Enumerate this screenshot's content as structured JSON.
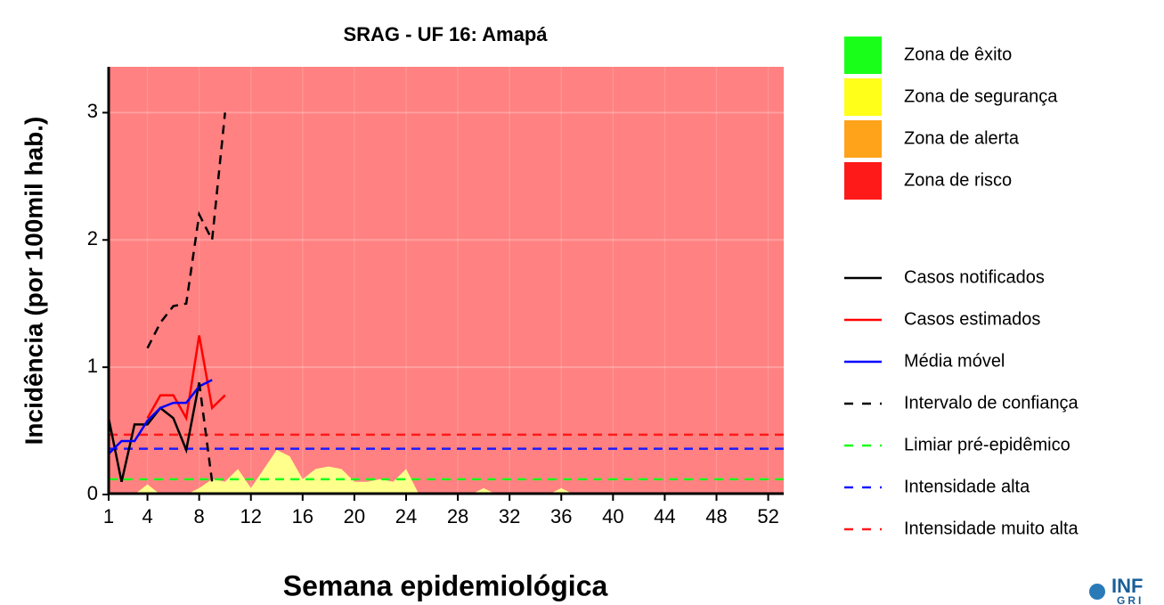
{
  "chart_data": {
    "type": "line",
    "title": "SRAG - UF 16: Amapá",
    "x_label": "Semana epidemiológica",
    "y_label": "Incidência (por 100mil hab.)",
    "xlim": [
      1,
      53.2
    ],
    "ylim": [
      0,
      3.36
    ],
    "xticks": [
      1,
      4,
      8,
      12,
      16,
      20,
      24,
      28,
      32,
      36,
      40,
      44,
      48,
      52
    ],
    "yticks": [
      0,
      1,
      2,
      3
    ],
    "grid": true,
    "zones": [
      {
        "name": "Zona de êxito",
        "color": "#1aff1a"
      },
      {
        "name": "Zona de segurança",
        "color": "#ffff1a",
        "x": [
          1,
          2,
          3,
          4,
          5,
          6,
          7,
          8,
          9,
          10,
          11,
          12,
          13,
          14,
          15,
          16,
          17,
          18,
          19,
          20,
          21,
          22,
          23,
          24,
          25,
          26,
          27,
          28,
          29,
          30,
          31,
          32,
          33,
          34,
          35,
          36,
          37,
          38,
          39,
          40,
          41,
          42,
          43,
          44,
          45,
          46,
          47,
          48,
          49,
          50,
          51,
          52
        ],
        "values": [
          0,
          0,
          0,
          0.08,
          0,
          0,
          0,
          0.05,
          0.12,
          0.1,
          0.2,
          0.05,
          0.2,
          0.35,
          0.3,
          0.12,
          0.2,
          0.22,
          0.2,
          0.1,
          0.1,
          0.12,
          0.1,
          0.2,
          0,
          0,
          0,
          0,
          0,
          0.05,
          0,
          0,
          0,
          0,
          0,
          0.05,
          0,
          0,
          0,
          0,
          0,
          0,
          0,
          0,
          0,
          0,
          0,
          0,
          0,
          0,
          0,
          0
        ]
      },
      {
        "name": "Zona de alerta",
        "color": "#ffa31a"
      },
      {
        "name": "Zona de risco",
        "color": "#ff1a1a"
      }
    ],
    "series": [
      {
        "name": "Casos notificados",
        "color": "#000000",
        "x": [
          1,
          2,
          3,
          4,
          5,
          6,
          7,
          8
        ],
        "values": [
          0.6,
          0.1,
          0.55,
          0.55,
          0.68,
          0.6,
          0.35,
          0.88
        ]
      },
      {
        "name": "Casos estimados",
        "color": "#ff0000",
        "x": [
          4,
          5,
          6,
          7,
          8,
          9,
          10
        ],
        "values": [
          0.6,
          0.78,
          0.78,
          0.6,
          1.25,
          0.68,
          0.78
        ]
      },
      {
        "name": "Média móvel",
        "color": "#0000ff",
        "x": [
          1,
          2,
          3,
          4,
          5,
          6,
          7,
          8,
          9
        ],
        "values": [
          0.32,
          0.42,
          0.42,
          0.58,
          0.68,
          0.72,
          0.72,
          0.85,
          0.9
        ]
      },
      {
        "name": "Intervalo de confiança",
        "color": "#000000",
        "dashed": true,
        "x": [
          4,
          5,
          6,
          7,
          8,
          9,
          10
        ],
        "lower": [
          null,
          null,
          null,
          null,
          0.88,
          0.1,
          null
        ],
        "upper": [
          1.15,
          1.35,
          1.48,
          1.5,
          2.2,
          2.0,
          3.0
        ]
      }
    ],
    "thresholds": [
      {
        "name": "Limiar pré-epidêmico",
        "color": "#1aff1a",
        "value": 0.12
      },
      {
        "name": "Intensidade alta",
        "color": "#1a1aff",
        "value": 0.36
      },
      {
        "name": "Intensidade muito alta",
        "color": "#ff1a1a",
        "value": 0.47
      }
    ],
    "logo": [
      "INF",
      "GRI"
    ]
  }
}
